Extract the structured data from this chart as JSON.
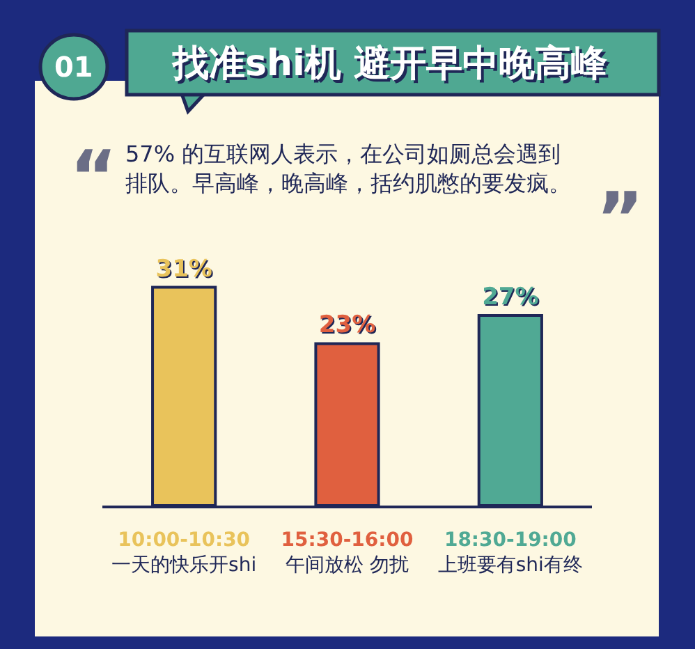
{
  "chart_data": {
    "type": "bar",
    "title": "找准shi机 避开早中晚高峰",
    "subtitle": "57% 的互联网人表示，在公司如厕总会遇到排队。早高峰，晚高峰，括约肌憋的要发疯。",
    "annotations": [
      "01",
      "“",
      "”"
    ],
    "categories": [
      "10:00-10:30\n一天的快乐开shi",
      "15:30-16:00\n午间放松 勿扰",
      "18:30-19:00\n上班要有shi有终"
    ],
    "values": [
      31,
      23,
      27
    ],
    "value_labels": [
      "31%",
      "23%",
      "27%"
    ],
    "colors": [
      "#e9c35b",
      "#e0603f",
      "#50a994"
    ]
  }
}
